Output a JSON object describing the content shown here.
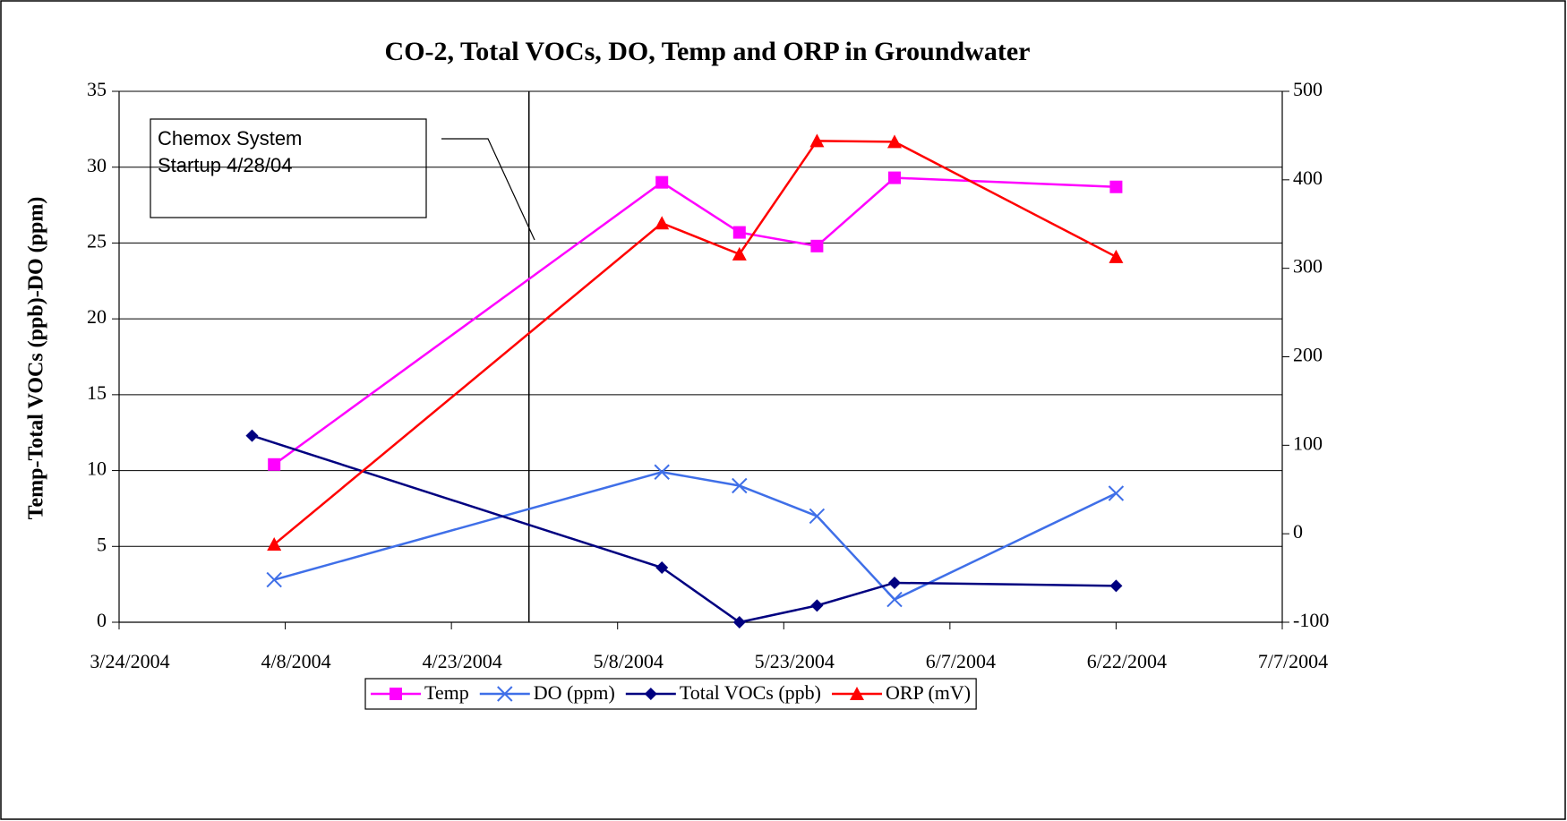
{
  "chart_data": {
    "type": "line",
    "title": "CO-2, Total VOCs, DO, Temp and ORP in Groundwater",
    "y_label": "Temp-Total VOCs (ppb)-DO (ppm)",
    "xlim": [
      "3/24/2004",
      "7/7/2004"
    ],
    "xticks": [
      "3/24/2004",
      "4/8/2004",
      "4/23/2004",
      "5/8/2004",
      "5/23/2004",
      "6/7/2004",
      "6/22/2004",
      "7/7/2004"
    ],
    "ylim": [
      0,
      35
    ],
    "yticks": [
      0,
      5,
      10,
      15,
      20,
      25,
      30,
      35
    ],
    "y2lim": [
      -100,
      500
    ],
    "y2ticks": [
      -100,
      0,
      100,
      200,
      300,
      400,
      500
    ],
    "grid": true,
    "legend": "bottom",
    "annotation": {
      "lines": [
        "Chemox System",
        "Startup 4/28/04"
      ],
      "x": "4/30/2004"
    },
    "series": [
      {
        "name": "Temp",
        "color": "#ff00ff",
        "marker": "square",
        "x": [
          "4/7/2004",
          "5/12/2004",
          "5/19/2004",
          "5/26/2004",
          "6/2/2004",
          "6/22/2004"
        ],
        "values": [
          10.4,
          29.0,
          25.7,
          24.8,
          29.3,
          28.7
        ]
      },
      {
        "name": "DO (ppm)",
        "color": "#3f6fe8",
        "marker": "x",
        "x": [
          "4/7/2004",
          "5/12/2004",
          "5/19/2004",
          "5/26/2004",
          "6/2/2004",
          "6/22/2004"
        ],
        "values": [
          2.8,
          9.9,
          9.0,
          7.0,
          1.5,
          8.5
        ]
      },
      {
        "name": "Total VOCs (ppb)",
        "color": "#000080",
        "marker": "diamond",
        "x": [
          "4/5/2004",
          "5/12/2004",
          "5/19/2004",
          "5/26/2004",
          "6/2/2004",
          "6/22/2004"
        ],
        "values": [
          12.3,
          3.6,
          0,
          1.1,
          2.6,
          2.4
        ]
      },
      {
        "name": "ORP (mV)",
        "color": "#ff0000",
        "marker": "triangle",
        "axis": "y2",
        "x": [
          "4/7/2004",
          "5/12/2004",
          "5/19/2004",
          "5/26/2004",
          "6/2/2004",
          "6/22/2004"
        ],
        "values": [
          -12,
          351,
          316,
          444,
          443,
          313
        ]
      }
    ]
  }
}
